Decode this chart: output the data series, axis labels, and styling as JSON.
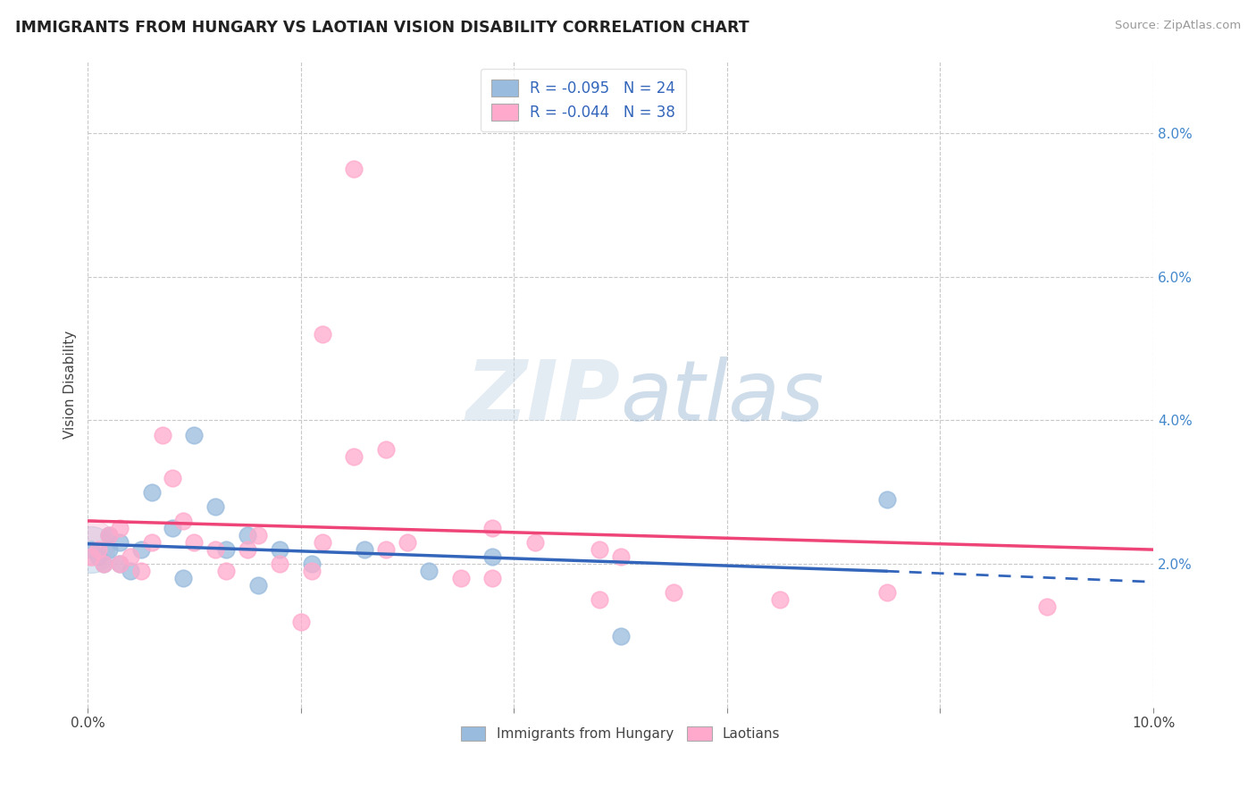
{
  "title": "IMMIGRANTS FROM HUNGARY VS LAOTIAN VISION DISABILITY CORRELATION CHART",
  "source": "Source: ZipAtlas.com",
  "ylabel": "Vision Disability",
  "xlim": [
    0.0,
    0.1
  ],
  "ylim": [
    0.0,
    0.09
  ],
  "grid_color": "#c8c8c8",
  "background_color": "#ffffff",
  "blue_color": "#99bbdd",
  "pink_color": "#ffaacc",
  "trend_blue": "#3366bb",
  "trend_pink": "#ee4477",
  "blue_scatter_x": [
    0.0003,
    0.001,
    0.0015,
    0.002,
    0.002,
    0.003,
    0.003,
    0.004,
    0.005,
    0.006,
    0.008,
    0.009,
    0.01,
    0.012,
    0.013,
    0.015,
    0.016,
    0.018,
    0.021,
    0.026,
    0.032,
    0.038,
    0.05,
    0.075
  ],
  "blue_scatter_y": [
    0.022,
    0.021,
    0.02,
    0.022,
    0.024,
    0.023,
    0.02,
    0.019,
    0.022,
    0.03,
    0.025,
    0.018,
    0.038,
    0.028,
    0.022,
    0.024,
    0.017,
    0.022,
    0.02,
    0.022,
    0.019,
    0.021,
    0.01,
    0.029
  ],
  "pink_scatter_x": [
    0.0003,
    0.001,
    0.0015,
    0.002,
    0.003,
    0.003,
    0.004,
    0.005,
    0.006,
    0.007,
    0.008,
    0.009,
    0.01,
    0.012,
    0.013,
    0.015,
    0.016,
    0.018,
    0.021,
    0.022,
    0.025,
    0.028,
    0.03,
    0.035,
    0.038,
    0.042,
    0.048,
    0.05,
    0.055,
    0.065,
    0.075,
    0.09,
    0.022,
    0.028,
    0.025,
    0.038,
    0.048,
    0.02
  ],
  "pink_scatter_y": [
    0.021,
    0.022,
    0.02,
    0.024,
    0.025,
    0.02,
    0.021,
    0.019,
    0.023,
    0.038,
    0.032,
    0.026,
    0.023,
    0.022,
    0.019,
    0.022,
    0.024,
    0.02,
    0.019,
    0.023,
    0.035,
    0.022,
    0.023,
    0.018,
    0.025,
    0.023,
    0.022,
    0.021,
    0.016,
    0.015,
    0.016,
    0.014,
    0.052,
    0.036,
    0.075,
    0.018,
    0.015,
    0.012
  ],
  "watermark": "ZIPatlas",
  "legend_blue_label": "R = -0.095   N = 24",
  "legend_pink_label": "R = -0.044   N = 38",
  "bottom_legend_blue": "Immigrants from Hungary",
  "bottom_legend_pink": "Laotians"
}
